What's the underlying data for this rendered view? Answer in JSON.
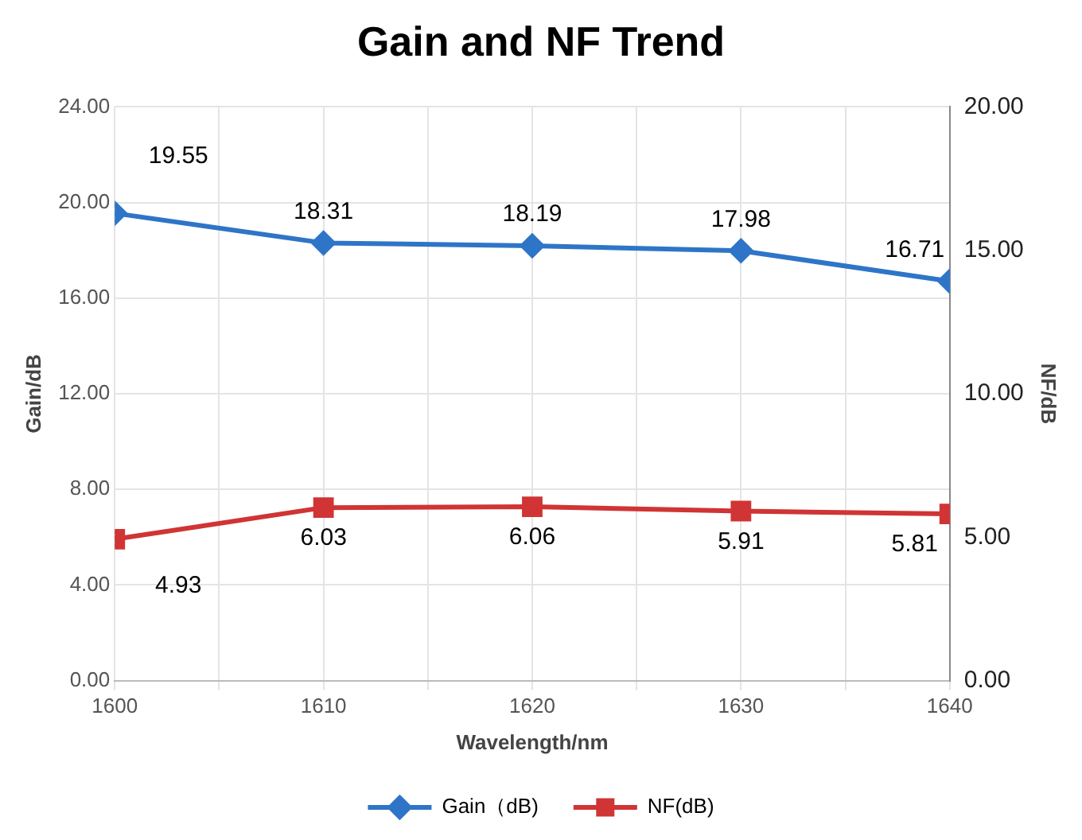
{
  "chart_data": {
    "type": "line",
    "title": "Gain and NF Trend",
    "xlabel": "Wavelength/nm",
    "ylabel": "Gain/dB",
    "y2label": "NF/dB",
    "x": [
      1600,
      1610,
      1620,
      1630,
      1640
    ],
    "series": [
      {
        "name": "Gain（dB)",
        "color": "#2e75c8",
        "values": [
          19.55,
          18.31,
          18.19,
          17.98,
          16.71
        ],
        "marker": "diamond"
      },
      {
        "name": "NF(dB)",
        "color": "#d03434",
        "values": [
          4.93,
          6.03,
          6.06,
          5.91,
          5.81
        ],
        "marker": "square",
        "axis": "y2"
      }
    ],
    "xlim": [
      1600,
      1640
    ],
    "xticks": [
      1600,
      {
        "value": 1605,
        "label": null
      },
      1610,
      {
        "value": 1615,
        "label": null
      },
      1620,
      {
        "value": 1625,
        "label": null
      },
      1630,
      {
        "value": 1635,
        "label": null
      },
      1640
    ],
    "ylim": [
      0,
      24
    ],
    "yticks": [
      {
        "value": 0,
        "label": "0.00"
      },
      {
        "value": 4,
        "label": "4.00"
      },
      {
        "value": 8,
        "label": "8.00"
      },
      {
        "value": 12,
        "label": "12.00"
      },
      {
        "value": 16,
        "label": "16.00"
      },
      {
        "value": 20,
        "label": "20.00"
      },
      {
        "value": 24,
        "label": "24.00"
      }
    ],
    "y2lim": [
      0,
      20
    ],
    "y2ticks": [
      {
        "value": 0,
        "label": "0.00"
      },
      {
        "value": 5,
        "label": "5.00"
      },
      {
        "value": 10,
        "label": "10.00"
      },
      {
        "value": 15,
        "label": "15.00"
      },
      {
        "value": 20,
        "label": "20.00"
      }
    ],
    "grid": true,
    "legend": "bottom",
    "data_labels": true,
    "line_style": "solid"
  }
}
